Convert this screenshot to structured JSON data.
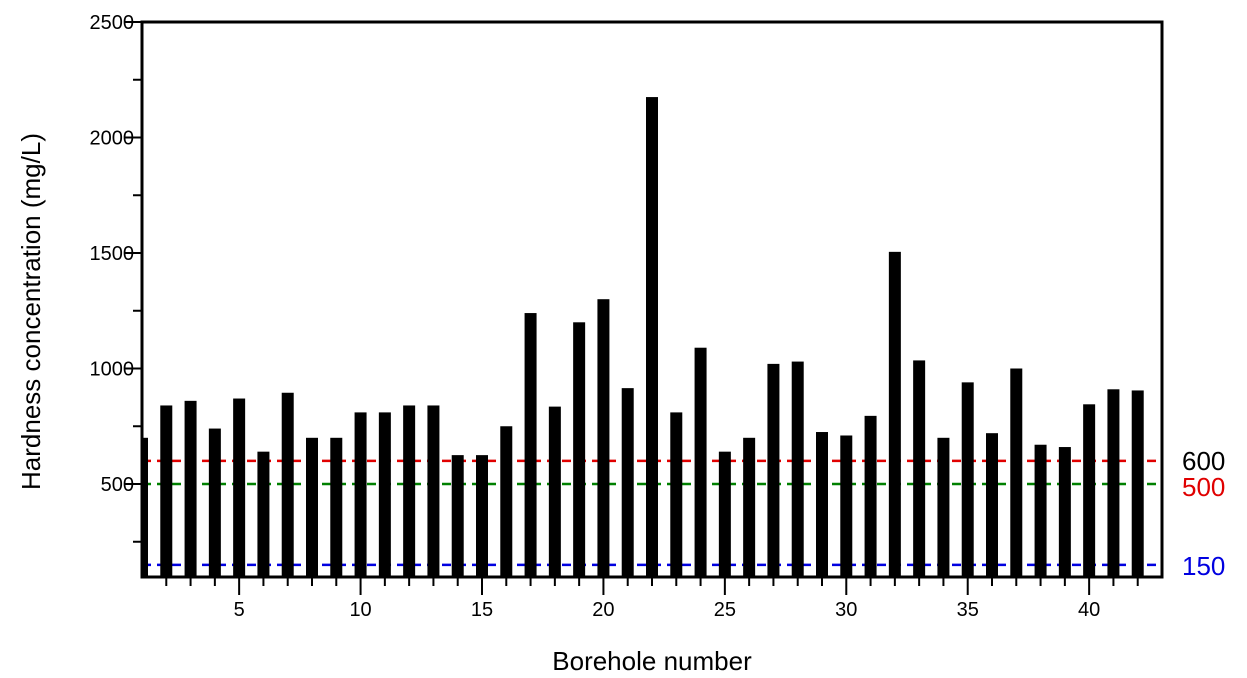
{
  "chart_data": {
    "type": "bar",
    "title": "",
    "xlabel": "Borehole number",
    "ylabel": "Hardness concentration (mg/L)",
    "xlim": [
      1,
      43
    ],
    "ylim": [
      0,
      2500
    ],
    "x_major_ticks": [
      5,
      10,
      15,
      20,
      25,
      30,
      35,
      40
    ],
    "y_major_ticks": [
      500,
      1000,
      1500,
      2000,
      2500
    ],
    "categories": [
      1,
      2,
      3,
      4,
      5,
      6,
      7,
      8,
      9,
      10,
      11,
      12,
      13,
      14,
      15,
      16,
      17,
      18,
      19,
      20,
      21,
      22,
      23,
      24,
      25,
      26,
      27,
      28,
      29,
      30,
      31,
      32,
      33,
      34,
      35,
      36,
      37,
      38,
      39,
      40,
      41,
      42
    ],
    "values": [
      700,
      840,
      860,
      740,
      870,
      640,
      895,
      700,
      700,
      810,
      810,
      840,
      840,
      625,
      625,
      750,
      1240,
      835,
      1200,
      1300,
      915,
      2175,
      810,
      1090,
      640,
      700,
      1020,
      1030,
      725,
      710,
      795,
      1505,
      1035,
      700,
      940,
      720,
      1000,
      670,
      660,
      845,
      910,
      905
    ],
    "bar_color": "#000000",
    "grid": false,
    "reference_lines": [
      {
        "value": 600,
        "color": "#e00000",
        "style": "dashed"
      },
      {
        "value": 500,
        "color": "#008000",
        "style": "dashed"
      },
      {
        "value": 150,
        "color": "#0000e0",
        "style": "dashed"
      }
    ],
    "right_labels": [
      {
        "text": "600",
        "color": "#000000"
      },
      {
        "text": "500",
        "color": "#e00000"
      },
      {
        "text": "150",
        "color": "#0000e0"
      }
    ]
  }
}
